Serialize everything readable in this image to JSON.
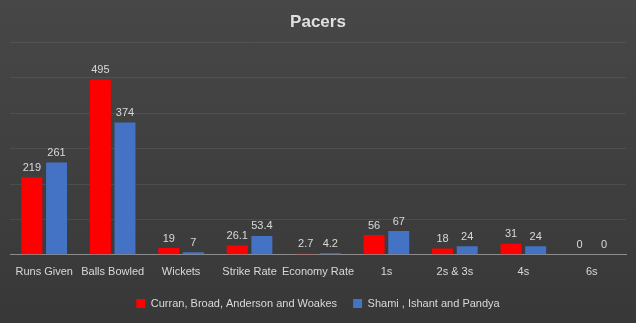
{
  "chart_data": {
    "type": "bar",
    "title": "Pacers",
    "categories": [
      "Runs Given",
      "Balls Bowled",
      "Wickets",
      "Strike Rate",
      "Economy Rate",
      "1s",
      "2s & 3s",
      "4s",
      "6s"
    ],
    "series": [
      {
        "name": "Curran, Broad, Anderson and Woakes",
        "color": "#ff0000",
        "values": [
          219,
          495,
          19,
          26.1,
          2.7,
          56,
          18,
          31,
          0
        ]
      },
      {
        "name": "Shami , Ishant and Pandya",
        "color": "#4472c4",
        "values": [
          261,
          374,
          7,
          53.4,
          4.2,
          67,
          24,
          24,
          0
        ]
      }
    ],
    "ylim": [
      0,
      600
    ],
    "yticks": [
      0,
      100,
      200,
      300,
      400,
      500,
      600
    ],
    "grid": true,
    "legend": "bottom",
    "data_labels": true,
    "tick_labels": "x"
  }
}
